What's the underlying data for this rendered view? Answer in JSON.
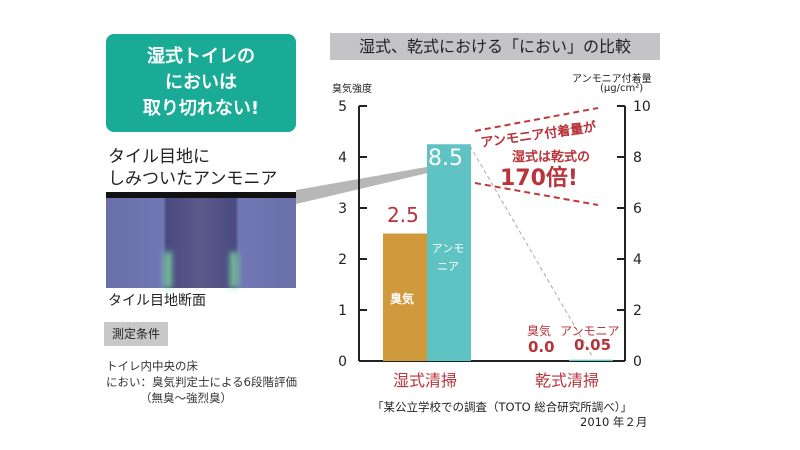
{
  "callout": {
    "lines": [
      "湿式トイレの",
      "においは",
      "取り切れない!"
    ]
  },
  "photo": {
    "title_lines": [
      "タイル目地に",
      "しみついたアンモニア"
    ],
    "caption": "タイル目地断面"
  },
  "conditions": {
    "label": "測定条件",
    "lines": [
      "トイレ内中央の床",
      "におい：臭気判定士による6段階評価",
      "（無臭～強烈臭）"
    ]
  },
  "annotation": {
    "lines": [
      "アンモニア付着量が",
      "湿式は乾式の"
    ],
    "highlight": "170倍!"
  },
  "source": {
    "line1": "「某公立学校での調査（TOTO 総合研究所調べ）」",
    "line2": "2010 年２月"
  },
  "colors": {
    "odor": "#d09a3c",
    "ammonia": "#5fc3c4",
    "accent": "#b8333a",
    "callout": "#1aab96"
  },
  "chart_data": {
    "type": "bar",
    "title": "湿式、乾式における「におい」の比較",
    "categories": [
      "湿式清掃",
      "乾式清掃"
    ],
    "left_axis": {
      "label": "臭気強度",
      "ylim": [
        0,
        5
      ],
      "ticks": [
        "0",
        "1",
        "2",
        "3",
        "4",
        "5"
      ]
    },
    "right_axis": {
      "label": "アンモニア付着量",
      "unit": "(µg/cm²)",
      "ylim": [
        0,
        10
      ],
      "ticks": [
        "0",
        "2",
        "4",
        "6",
        "8",
        "10"
      ]
    },
    "series": [
      {
        "name": "臭気",
        "axis": "left",
        "values": [
          2.5,
          0.0
        ],
        "labels": [
          "2.5",
          "0.0"
        ],
        "in_bar_label": "臭気"
      },
      {
        "name": "アンモニア",
        "axis": "right",
        "values": [
          8.5,
          0.05
        ],
        "labels": [
          "8.5",
          "0.05"
        ],
        "in_bar_label_lines": [
          "アンモ",
          "ニア"
        ]
      }
    ],
    "dry_labels": {
      "odor": "臭気",
      "ammonia": "アンモニア"
    }
  }
}
